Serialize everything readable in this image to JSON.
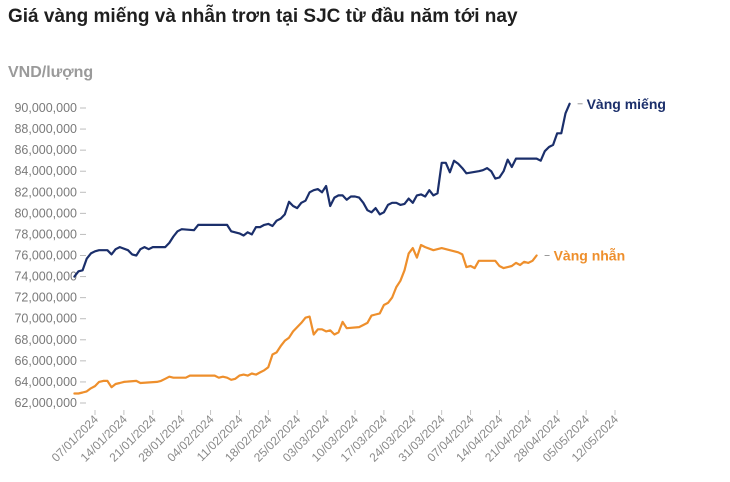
{
  "title": "Giá vàng miếng và nhẫn trơn tại SJC từ đầu năm tới nay",
  "unit_label": "VND/lượng",
  "colors": {
    "mieng": "#1b2f6b",
    "nhan": "#ee8f2c"
  },
  "chart_data": {
    "type": "line",
    "title": "Giá vàng miếng và nhẫn trơn tại SJC từ đầu năm tới nay",
    "xlabel": "",
    "ylabel": "VND/lượng",
    "xlim": [
      "2024-01-07",
      "2024-05-12"
    ],
    "ylim": [
      62000000,
      91000000
    ],
    "yticks": [
      62000000,
      64000000,
      66000000,
      68000000,
      70000000,
      72000000,
      74000000,
      76000000,
      78000000,
      80000000,
      82000000,
      84000000,
      86000000,
      88000000,
      90000000
    ],
    "ytick_labels": [
      "62,000,000",
      "64,000,000",
      "66,000,000",
      "68,000,000",
      "70,000,000",
      "72,000,000",
      "74,000,000",
      "76,000,000",
      "78,000,000",
      "80,000,000",
      "82,000,000",
      "84,000,000",
      "86,000,000",
      "88,000,000",
      "90,000,000"
    ],
    "xticks": [
      "2024-01-07",
      "2024-01-14",
      "2024-01-21",
      "2024-01-28",
      "2024-02-04",
      "2024-02-11",
      "2024-02-18",
      "2024-02-25",
      "2024-03-03",
      "2024-03-10",
      "2024-03-17",
      "2024-03-24",
      "2024-03-31",
      "2024-04-07",
      "2024-04-14",
      "2024-04-21",
      "2024-04-28",
      "2024-05-05",
      "2024-05-12"
    ],
    "xtick_labels": [
      "07/01/2024",
      "14/01/2024",
      "21/01/2024",
      "28/01/2024",
      "04/02/2024",
      "11/02/2024",
      "18/02/2024",
      "25/02/2024",
      "03/03/2024",
      "10/03/2024",
      "17/03/2024",
      "24/03/2024",
      "31/03/2024",
      "07/04/2024",
      "14/04/2024",
      "21/04/2024",
      "28/04/2024",
      "05/05/2024",
      "12/05/2024"
    ],
    "grid": false,
    "legend": "direct labels at line ends",
    "series": [
      {
        "name": "Vàng miếng",
        "color": "#1b2f6b",
        "points": [
          [
            "2024-01-02",
            74000000
          ],
          [
            "2024-01-03",
            74500000
          ],
          [
            "2024-01-04",
            74600000
          ],
          [
            "2024-01-05",
            75700000
          ],
          [
            "2024-01-06",
            76200000
          ],
          [
            "2024-01-07",
            76400000
          ],
          [
            "2024-01-08",
            76500000
          ],
          [
            "2024-01-10",
            76500000
          ],
          [
            "2024-01-11",
            76100000
          ],
          [
            "2024-01-12",
            76600000
          ],
          [
            "2024-01-13",
            76800000
          ],
          [
            "2024-01-15",
            76500000
          ],
          [
            "2024-01-16",
            76100000
          ],
          [
            "2024-01-17",
            76000000
          ],
          [
            "2024-01-18",
            76600000
          ],
          [
            "2024-01-19",
            76800000
          ],
          [
            "2024-01-20",
            76600000
          ],
          [
            "2024-01-21",
            76800000
          ],
          [
            "2024-01-24",
            76800000
          ],
          [
            "2024-01-25",
            77200000
          ],
          [
            "2024-01-26",
            77800000
          ],
          [
            "2024-01-27",
            78300000
          ],
          [
            "2024-01-28",
            78500000
          ],
          [
            "2024-01-31",
            78400000
          ],
          [
            "2024-02-01",
            78900000
          ],
          [
            "2024-02-08",
            78900000
          ],
          [
            "2024-02-09",
            78300000
          ],
          [
            "2024-02-11",
            78100000
          ],
          [
            "2024-02-12",
            77900000
          ],
          [
            "2024-02-13",
            78200000
          ],
          [
            "2024-02-14",
            78000000
          ],
          [
            "2024-02-15",
            78700000
          ],
          [
            "2024-02-16",
            78700000
          ],
          [
            "2024-02-17",
            78900000
          ],
          [
            "2024-02-18",
            79000000
          ],
          [
            "2024-02-19",
            78800000
          ],
          [
            "2024-02-20",
            79300000
          ],
          [
            "2024-02-21",
            79500000
          ],
          [
            "2024-02-22",
            79900000
          ],
          [
            "2024-02-23",
            81100000
          ],
          [
            "2024-02-24",
            80700000
          ],
          [
            "2024-02-25",
            80500000
          ],
          [
            "2024-02-26",
            81000000
          ],
          [
            "2024-02-27",
            81200000
          ],
          [
            "2024-02-28",
            82000000
          ],
          [
            "2024-02-29",
            82200000
          ],
          [
            "2024-03-01",
            82300000
          ],
          [
            "2024-03-02",
            82000000
          ],
          [
            "2024-03-03",
            82600000
          ],
          [
            "2024-03-04",
            80700000
          ],
          [
            "2024-03-05",
            81500000
          ],
          [
            "2024-03-06",
            81700000
          ],
          [
            "2024-03-07",
            81700000
          ],
          [
            "2024-03-08",
            81300000
          ],
          [
            "2024-03-09",
            81600000
          ],
          [
            "2024-03-10",
            81600000
          ],
          [
            "2024-03-11",
            81500000
          ],
          [
            "2024-03-12",
            81000000
          ],
          [
            "2024-03-13",
            80300000
          ],
          [
            "2024-03-14",
            80100000
          ],
          [
            "2024-03-15",
            80500000
          ],
          [
            "2024-03-16",
            79900000
          ],
          [
            "2024-03-17",
            80100000
          ],
          [
            "2024-03-18",
            80800000
          ],
          [
            "2024-03-19",
            81000000
          ],
          [
            "2024-03-20",
            81000000
          ],
          [
            "2024-03-21",
            80800000
          ],
          [
            "2024-03-22",
            80900000
          ],
          [
            "2024-03-23",
            81400000
          ],
          [
            "2024-03-24",
            81000000
          ],
          [
            "2024-03-25",
            81700000
          ],
          [
            "2024-03-26",
            81800000
          ],
          [
            "2024-03-27",
            81600000
          ],
          [
            "2024-03-28",
            82200000
          ],
          [
            "2024-03-29",
            81700000
          ],
          [
            "2024-03-30",
            81900000
          ],
          [
            "2024-03-31",
            84800000
          ],
          [
            "2024-04-01",
            84800000
          ],
          [
            "2024-04-02",
            83900000
          ],
          [
            "2024-04-03",
            85000000
          ],
          [
            "2024-04-04",
            84700000
          ],
          [
            "2024-04-05",
            84300000
          ],
          [
            "2024-04-06",
            83800000
          ],
          [
            "2024-04-09",
            84000000
          ],
          [
            "2024-04-10",
            84100000
          ],
          [
            "2024-04-11",
            84300000
          ],
          [
            "2024-04-12",
            84000000
          ],
          [
            "2024-04-13",
            83300000
          ],
          [
            "2024-04-14",
            83400000
          ],
          [
            "2024-04-15",
            84000000
          ],
          [
            "2024-04-16",
            85100000
          ],
          [
            "2024-04-17",
            84400000
          ],
          [
            "2024-04-18",
            85200000
          ],
          [
            "2024-04-23",
            85200000
          ],
          [
            "2024-04-24",
            85000000
          ],
          [
            "2024-04-25",
            85900000
          ],
          [
            "2024-04-26",
            86300000
          ],
          [
            "2024-04-27",
            86500000
          ],
          [
            "2024-04-28",
            87600000
          ],
          [
            "2024-04-29",
            87600000
          ],
          [
            "2024-04-30",
            89500000
          ],
          [
            "2024-05-01",
            90400000
          ]
        ]
      },
      {
        "name": "Vàng nhẫn",
        "color": "#ee8f2c",
        "points": [
          [
            "2024-01-02",
            62900000
          ],
          [
            "2024-01-03",
            62900000
          ],
          [
            "2024-01-04",
            63000000
          ],
          [
            "2024-01-05",
            63100000
          ],
          [
            "2024-01-06",
            63400000
          ],
          [
            "2024-01-07",
            63600000
          ],
          [
            "2024-01-08",
            64000000
          ],
          [
            "2024-01-09",
            64100000
          ],
          [
            "2024-01-10",
            64100000
          ],
          [
            "2024-01-11",
            63500000
          ],
          [
            "2024-01-12",
            63800000
          ],
          [
            "2024-01-13",
            63900000
          ],
          [
            "2024-01-14",
            64000000
          ],
          [
            "2024-01-17",
            64100000
          ],
          [
            "2024-01-18",
            63900000
          ],
          [
            "2024-01-22",
            64000000
          ],
          [
            "2024-01-23",
            64100000
          ],
          [
            "2024-01-24",
            64300000
          ],
          [
            "2024-01-25",
            64500000
          ],
          [
            "2024-01-26",
            64400000
          ],
          [
            "2024-01-29",
            64400000
          ],
          [
            "2024-01-30",
            64600000
          ],
          [
            "2024-02-05",
            64600000
          ],
          [
            "2024-02-06",
            64400000
          ],
          [
            "2024-02-07",
            64500000
          ],
          [
            "2024-02-08",
            64400000
          ],
          [
            "2024-02-09",
            64200000
          ],
          [
            "2024-02-10",
            64300000
          ],
          [
            "2024-02-11",
            64600000
          ],
          [
            "2024-02-12",
            64700000
          ],
          [
            "2024-02-13",
            64600000
          ],
          [
            "2024-02-14",
            64800000
          ],
          [
            "2024-02-15",
            64700000
          ],
          [
            "2024-02-16",
            64900000
          ],
          [
            "2024-02-17",
            65100000
          ],
          [
            "2024-02-18",
            65400000
          ],
          [
            "2024-02-19",
            66600000
          ],
          [
            "2024-02-20",
            66800000
          ],
          [
            "2024-02-21",
            67400000
          ],
          [
            "2024-02-22",
            67900000
          ],
          [
            "2024-02-23",
            68200000
          ],
          [
            "2024-02-24",
            68800000
          ],
          [
            "2024-02-25",
            69200000
          ],
          [
            "2024-02-26",
            69600000
          ],
          [
            "2024-02-27",
            70100000
          ],
          [
            "2024-02-28",
            70200000
          ],
          [
            "2024-02-29",
            68500000
          ],
          [
            "2024-03-01",
            69000000
          ],
          [
            "2024-03-02",
            69000000
          ],
          [
            "2024-03-03",
            68800000
          ],
          [
            "2024-03-04",
            68900000
          ],
          [
            "2024-03-05",
            68500000
          ],
          [
            "2024-03-06",
            68700000
          ],
          [
            "2024-03-07",
            69700000
          ],
          [
            "2024-03-08",
            69100000
          ],
          [
            "2024-03-11",
            69200000
          ],
          [
            "2024-03-12",
            69400000
          ],
          [
            "2024-03-13",
            69600000
          ],
          [
            "2024-03-14",
            70300000
          ],
          [
            "2024-03-15",
            70400000
          ],
          [
            "2024-03-16",
            70500000
          ],
          [
            "2024-03-17",
            71300000
          ],
          [
            "2024-03-18",
            71500000
          ],
          [
            "2024-03-19",
            72000000
          ],
          [
            "2024-03-20",
            73000000
          ],
          [
            "2024-03-21",
            73600000
          ],
          [
            "2024-03-22",
            74600000
          ],
          [
            "2024-03-23",
            76200000
          ],
          [
            "2024-03-24",
            76700000
          ],
          [
            "2024-03-25",
            75800000
          ],
          [
            "2024-03-26",
            77000000
          ],
          [
            "2024-03-27",
            76800000
          ],
          [
            "2024-03-29",
            76500000
          ],
          [
            "2024-03-31",
            76700000
          ],
          [
            "2024-04-02",
            76500000
          ],
          [
            "2024-04-04",
            76300000
          ],
          [
            "2024-04-05",
            76100000
          ],
          [
            "2024-04-06",
            74900000
          ],
          [
            "2024-04-07",
            75000000
          ],
          [
            "2024-04-08",
            74800000
          ],
          [
            "2024-04-09",
            75500000
          ],
          [
            "2024-04-12",
            75500000
          ],
          [
            "2024-04-13",
            75500000
          ],
          [
            "2024-04-14",
            75000000
          ],
          [
            "2024-04-15",
            74800000
          ],
          [
            "2024-04-17",
            75000000
          ],
          [
            "2024-04-18",
            75300000
          ],
          [
            "2024-04-19",
            75100000
          ],
          [
            "2024-04-20",
            75400000
          ],
          [
            "2024-04-21",
            75300000
          ],
          [
            "2024-04-22",
            75500000
          ],
          [
            "2024-04-23",
            76000000
          ]
        ]
      }
    ]
  }
}
